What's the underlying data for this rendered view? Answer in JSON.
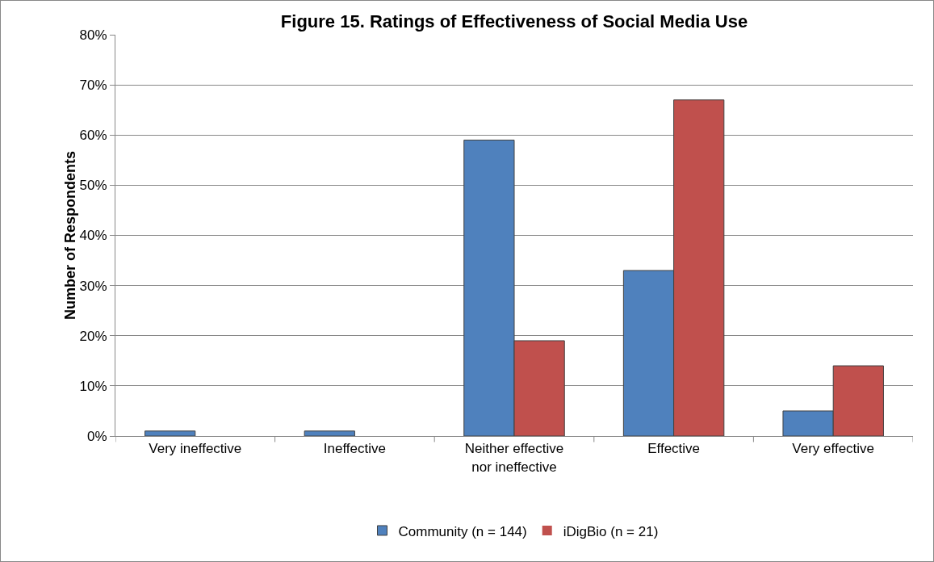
{
  "chart_data": {
    "type": "bar",
    "title": "Figure 15. Ratings of Effectiveness of Social Media Use",
    "ylabel": "Number of Respondents",
    "categories": [
      "Very ineffective",
      "Ineffective",
      "Neither effective\nnor ineffective",
      "Effective",
      "Very effective"
    ],
    "series": [
      {
        "name": "Community (n = 144)",
        "color": "#4f81bd",
        "values": [
          1,
          1,
          59,
          33,
          5
        ]
      },
      {
        "name": "iDigBio (n = 21)",
        "color": "#c0504d",
        "values": [
          0,
          0,
          19,
          67,
          14
        ]
      }
    ],
    "ylim": [
      0,
      80
    ],
    "yticks": [
      {
        "value": 0,
        "label": "0%"
      },
      {
        "value": 10,
        "label": "10%"
      },
      {
        "value": 20,
        "label": "20%"
      },
      {
        "value": 30,
        "label": "30%"
      },
      {
        "value": 40,
        "label": "40%"
      },
      {
        "value": 50,
        "label": "50%"
      },
      {
        "value": 60,
        "label": "60%"
      },
      {
        "value": 70,
        "label": "70%"
      },
      {
        "value": 80,
        "label": "80%"
      }
    ],
    "grid": "y",
    "legend": "bottom"
  }
}
